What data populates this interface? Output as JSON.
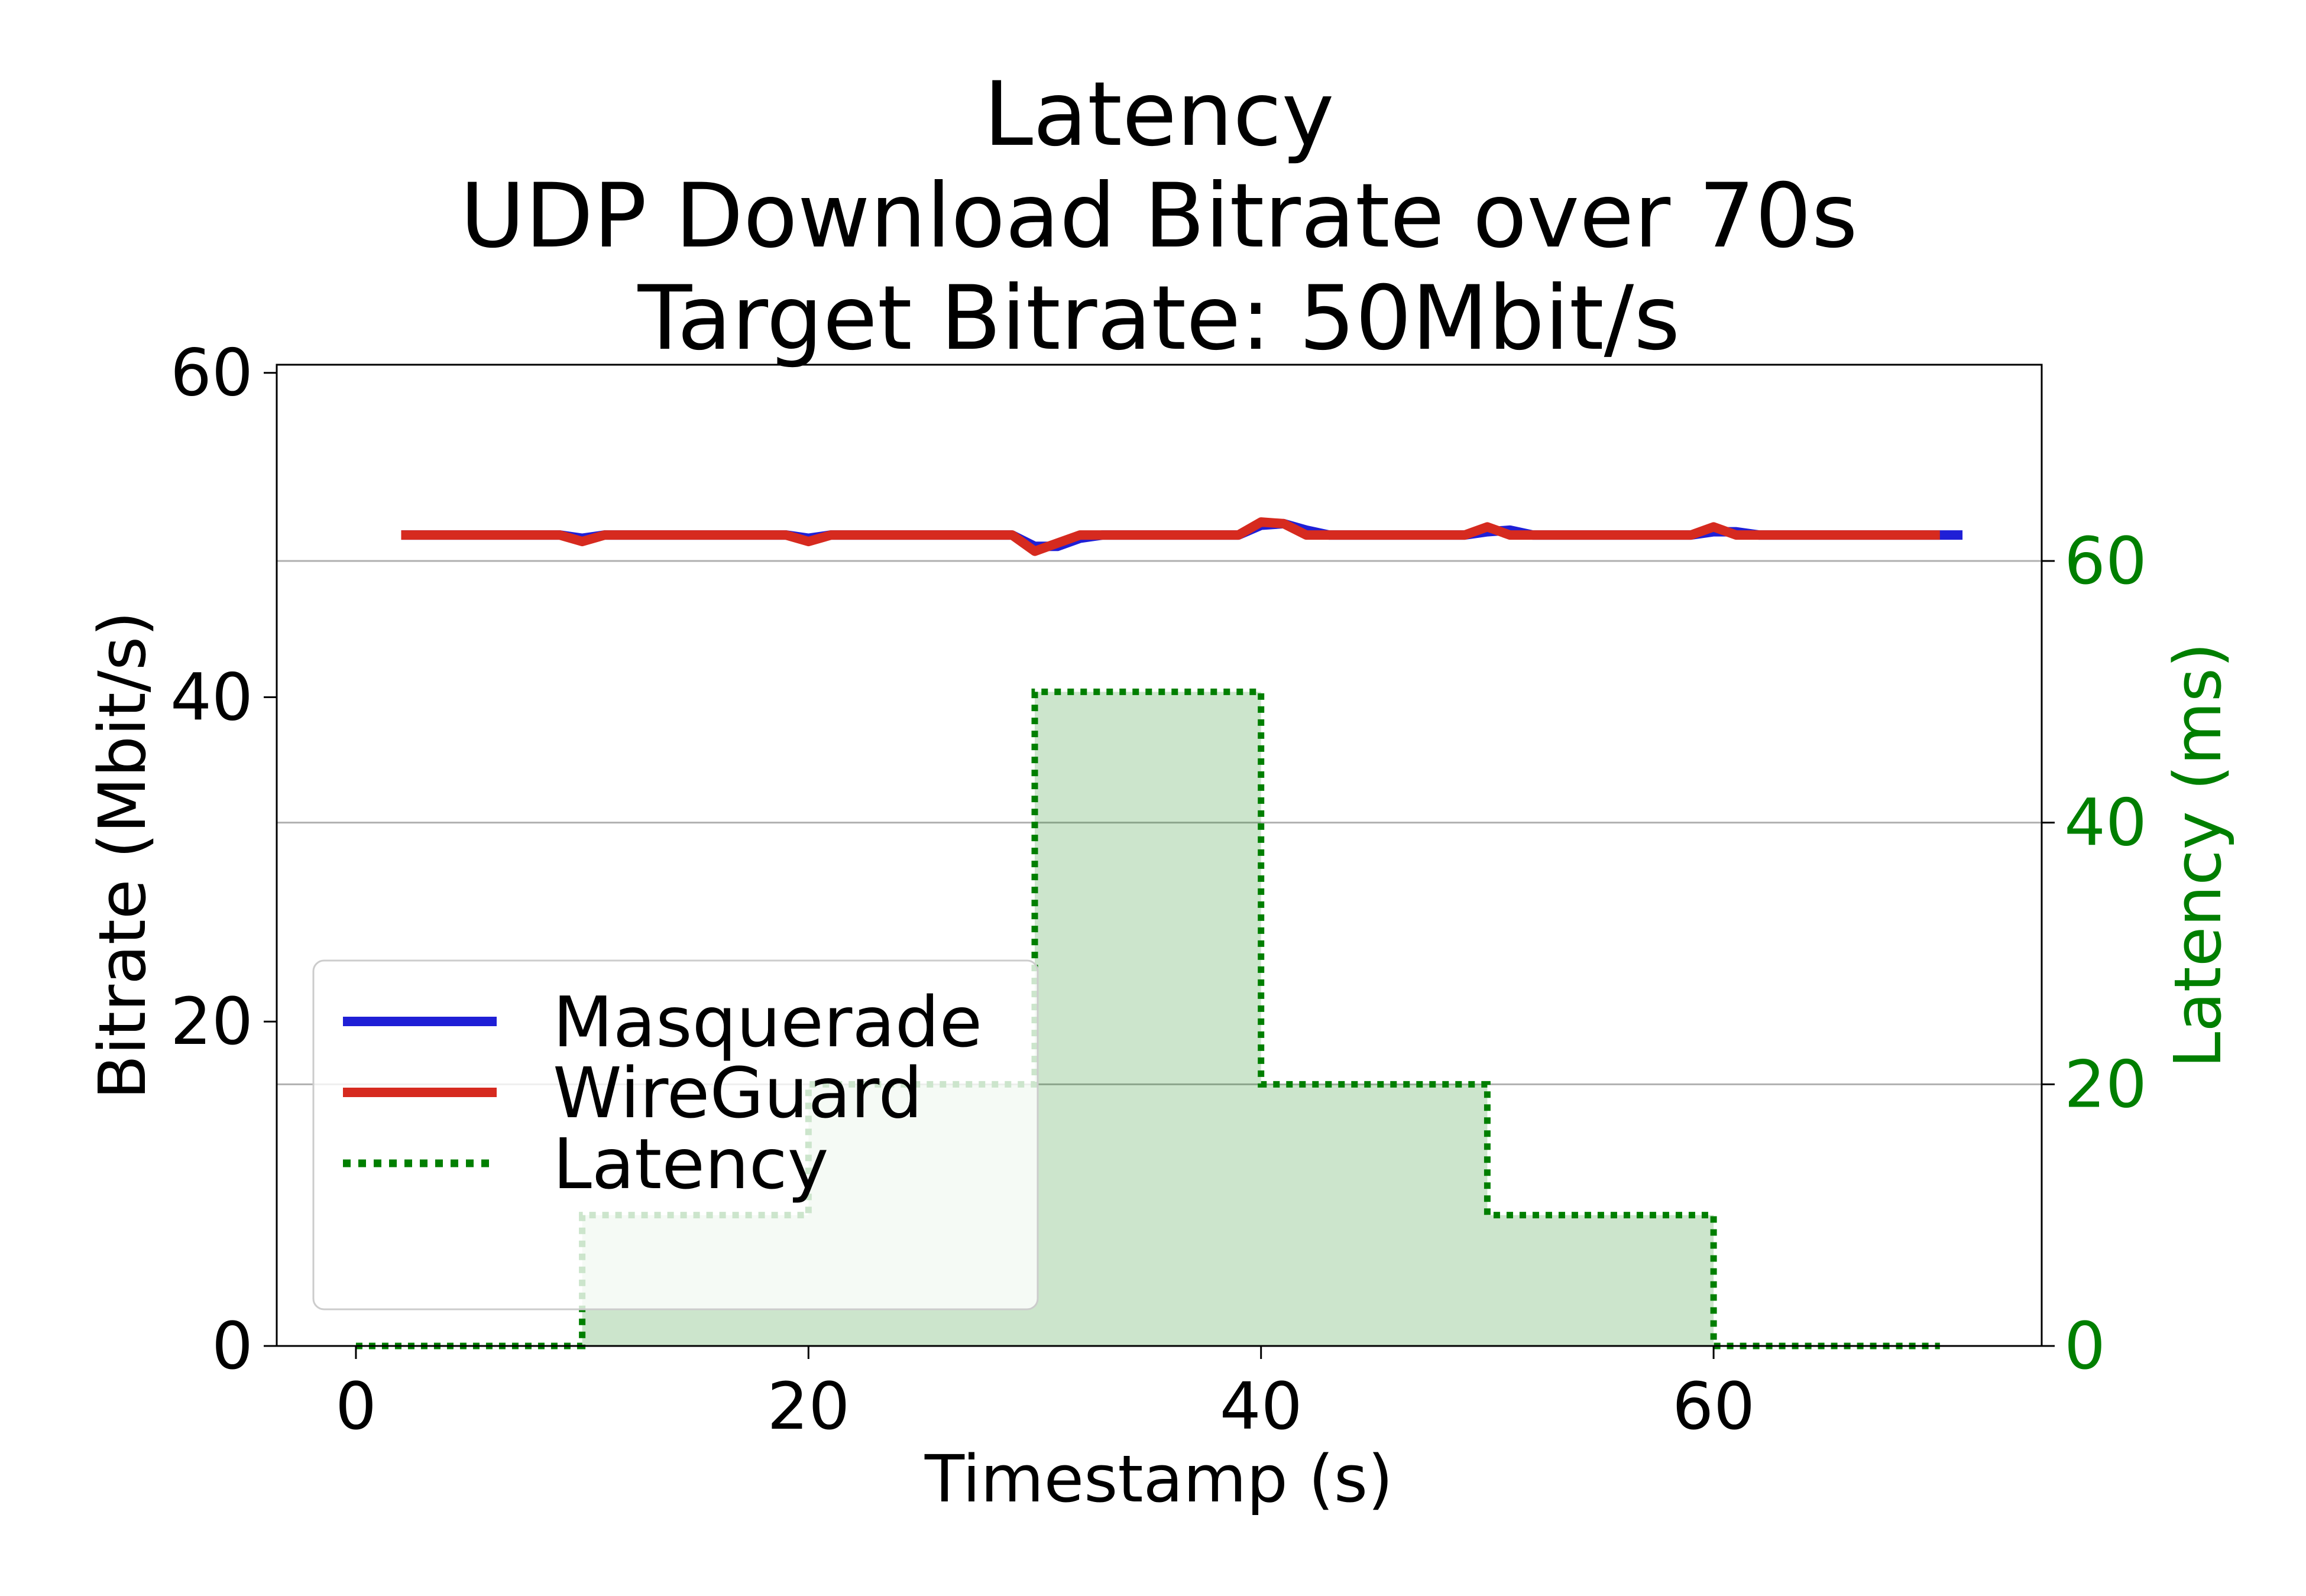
{
  "chart_data": {
    "type": "line",
    "title": [
      "Latency",
      "UDP Download Bitrate over 70s",
      "Target Bitrate: 50Mbit/s"
    ],
    "xlabel": "Timestamp (s)",
    "ylabel": "Bitrate (Mbit/s)",
    "y2label": "Latency (ms)",
    "xlim": [
      -3.5,
      74.5
    ],
    "ylim": [
      0,
      60.5
    ],
    "y2lim": [
      0,
      75
    ],
    "xticks": [
      0,
      20,
      40,
      60
    ],
    "yticks": [
      0,
      20,
      40,
      60
    ],
    "y2ticks": [
      0,
      20,
      40,
      60
    ],
    "grid": "right-axis horizontal",
    "legend_position": "lower-left",
    "series": [
      {
        "name": "Masquerade",
        "axis": "left",
        "color": "#1f1fd6",
        "style": "solid",
        "x": [
          2,
          3,
          4,
          5,
          6,
          7,
          8,
          9,
          10,
          11,
          12,
          13,
          14,
          15,
          16,
          17,
          18,
          19,
          20,
          21,
          22,
          23,
          24,
          25,
          26,
          27,
          28,
          29,
          30,
          31,
          32,
          33,
          34,
          35,
          36,
          37,
          38,
          39,
          40,
          41,
          42,
          43,
          44,
          45,
          46,
          47,
          48,
          49,
          50,
          51,
          52,
          53,
          54,
          55,
          56,
          57,
          58,
          59,
          60,
          61,
          62,
          63,
          64,
          65,
          66,
          67,
          68,
          69,
          70,
          71
        ],
        "values": [
          50,
          50,
          50,
          50,
          50,
          50,
          50,
          50,
          49.8,
          50,
          50,
          50,
          50,
          50,
          50,
          50,
          50,
          50,
          49.8,
          50,
          50,
          50,
          50,
          50,
          50,
          50,
          50,
          50,
          49.3,
          49.3,
          49.8,
          50,
          50,
          50,
          50,
          50,
          50,
          50,
          50.6,
          50.7,
          50.3,
          50,
          50,
          50,
          50,
          50,
          50,
          50,
          50.2,
          50.3,
          50,
          50,
          50,
          50,
          50,
          50,
          50,
          50,
          50.2,
          50.2,
          50,
          50,
          50,
          50,
          50,
          50,
          50,
          50,
          50,
          50
        ]
      },
      {
        "name": "WireGuard",
        "axis": "left",
        "color": "#d62a1f",
        "style": "solid",
        "x": [
          2,
          3,
          4,
          5,
          6,
          7,
          8,
          9,
          10,
          11,
          12,
          13,
          14,
          15,
          16,
          17,
          18,
          19,
          20,
          21,
          22,
          23,
          24,
          25,
          26,
          27,
          28,
          29,
          30,
          31,
          32,
          33,
          34,
          35,
          36,
          37,
          38,
          39,
          40,
          41,
          42,
          43,
          44,
          45,
          46,
          47,
          48,
          49,
          50,
          51,
          52,
          53,
          54,
          55,
          56,
          57,
          58,
          59,
          60,
          61,
          62,
          63,
          64,
          65,
          66,
          67,
          68,
          69,
          70
        ],
        "values": [
          50,
          50,
          50,
          50,
          50,
          50,
          50,
          50,
          49.6,
          50,
          50,
          50,
          50,
          50,
          50,
          50,
          50,
          50,
          49.6,
          50,
          50,
          50,
          50,
          50,
          50,
          50,
          50,
          50,
          49.0,
          49.5,
          50,
          50,
          50,
          50,
          50,
          50,
          50,
          50,
          50.8,
          50.7,
          50,
          50,
          50,
          50,
          50,
          50,
          50,
          50,
          50.5,
          50,
          50,
          50,
          50,
          50,
          50,
          50,
          50,
          50,
          50.5,
          50,
          50,
          50,
          50,
          50,
          50,
          50,
          50,
          50,
          50
        ]
      },
      {
        "name": "Latency",
        "axis": "right",
        "color": "#007f00",
        "style": "dotted-step-filled",
        "x": [
          0,
          10,
          20,
          30,
          40,
          50,
          60,
          70
        ],
        "values": [
          0,
          10,
          20,
          50,
          20,
          10,
          0,
          0
        ]
      }
    ]
  }
}
